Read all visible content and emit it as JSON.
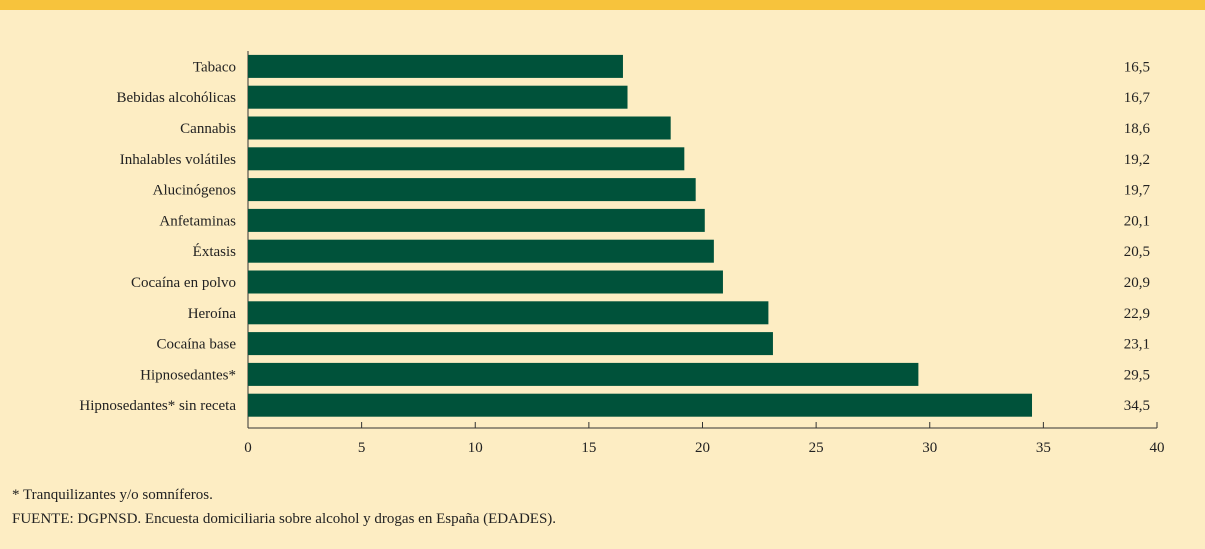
{
  "colors": {
    "bar": "#00523a",
    "background": "#fdedc3",
    "top_bar": "#f7c33c",
    "axis": "#333333"
  },
  "chart_data": {
    "type": "bar",
    "orientation": "horizontal",
    "categories": [
      "Tabaco",
      "Bebidas alcohólicas",
      "Cannabis",
      "Inhalables volátiles",
      "Alucinógenos",
      "Anfetaminas",
      "Éxtasis",
      "Cocaína en polvo",
      "Heroína",
      "Cocaína base",
      "Hipnosedantes*",
      "Hipnosedantes* sin receta"
    ],
    "values": [
      16.5,
      16.7,
      18.6,
      19.2,
      19.7,
      20.1,
      20.5,
      20.9,
      22.9,
      23.1,
      29.5,
      34.5
    ],
    "value_labels": [
      "16,5",
      "16,7",
      "18,6",
      "19,2",
      "19,7",
      "20,1",
      "20,5",
      "20,9",
      "22,9",
      "23,1",
      "29,5",
      "34,5"
    ],
    "xlim": [
      0,
      40
    ],
    "xticks": [
      0,
      5,
      10,
      15,
      20,
      25,
      30,
      35,
      40
    ],
    "title": "",
    "xlabel": "",
    "ylabel": "",
    "grid": false
  },
  "footer": {
    "note": "* Tranquilizantes y/o somníferos.",
    "source": "FUENTE: DGPNSD. Encuesta domiciliaria sobre alcohol y drogas en España (EDADES)."
  }
}
